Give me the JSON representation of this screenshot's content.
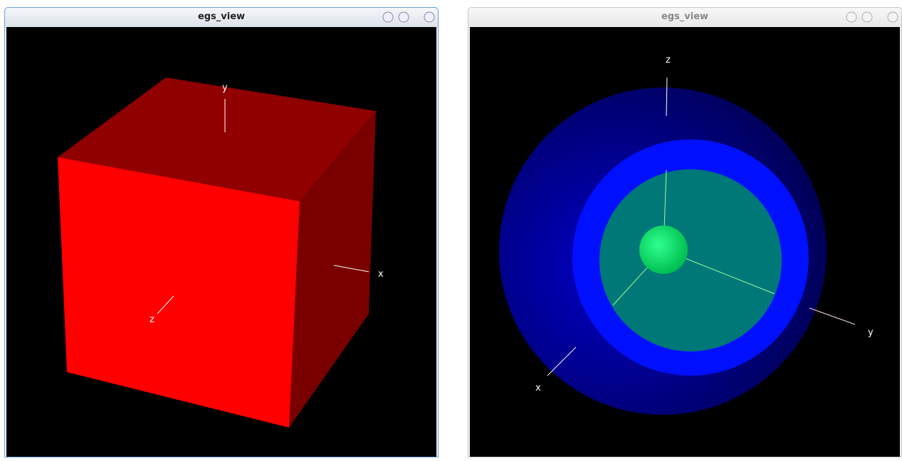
{
  "windows": [
    {
      "title": "egs_view",
      "axis_labels": {
        "x": "x",
        "y": "y",
        "z": "z"
      }
    },
    {
      "title": "egs_view",
      "axis_labels": {
        "x": "x",
        "y": "y",
        "z": "z"
      }
    }
  ]
}
